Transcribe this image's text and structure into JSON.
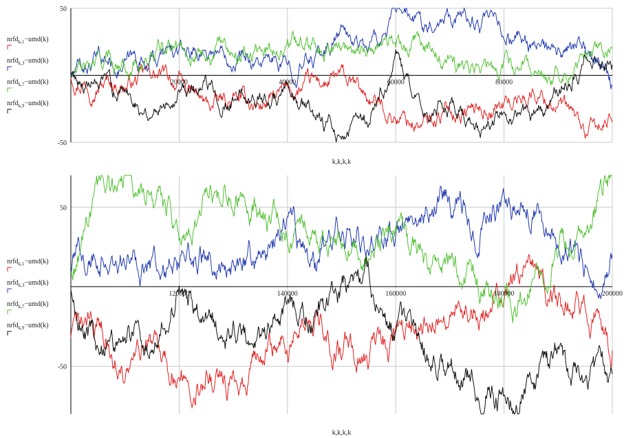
{
  "chart_data": [
    {
      "type": "line",
      "xlabel": "k,k,k,k",
      "xlim": [
        0,
        100000
      ],
      "ylim": [
        -50,
        50
      ],
      "x_ticks": [
        20000,
        40000,
        60000,
        80000
      ],
      "x_tick_labels": [
        "20000",
        "40000",
        "60000",
        "80000"
      ],
      "y_ticks": [
        50,
        -50
      ],
      "y_tick_labels": [
        "50",
        "-50"
      ],
      "legend_placement": "left",
      "series": [
        {
          "legend_main": "nrfd",
          "legend_sub": "k,1",
          "legend_tail": "−umd(k)",
          "color": "#e02020",
          "x": [
            0,
            5000,
            10000,
            15000,
            20000,
            25000,
            30000,
            35000,
            40000,
            45000,
            50000,
            55000,
            60000,
            65000,
            70000,
            75000,
            80000,
            85000,
            90000,
            95000,
            100000
          ],
          "y": [
            0,
            -4,
            -6,
            0,
            -6,
            -24,
            -20,
            -22,
            -14,
            -8,
            -4,
            -18,
            -30,
            -38,
            -26,
            -25,
            -22,
            -12,
            -20,
            -45,
            -35
          ]
        },
        {
          "legend_main": "nrfd",
          "legend_sub": "k,3",
          "legend_tail": "−umd(k)",
          "color": "#2038b0",
          "x": [
            0,
            5000,
            10000,
            15000,
            20000,
            25000,
            30000,
            35000,
            40000,
            45000,
            50000,
            55000,
            60000,
            65000,
            70000,
            75000,
            80000,
            85000,
            90000,
            95000,
            100000
          ],
          "y": [
            0,
            10,
            8,
            14,
            16,
            20,
            18,
            10,
            4,
            14,
            32,
            20,
            42,
            38,
            50,
            40,
            30,
            24,
            10,
            20,
            -8
          ]
        },
        {
          "legend_main": "nrfd",
          "legend_sub": "k,7",
          "legend_tail": "−umd(k)",
          "color": "#50c030",
          "x": [
            0,
            5000,
            10000,
            15000,
            20000,
            25000,
            30000,
            35000,
            40000,
            45000,
            50000,
            55000,
            60000,
            65000,
            70000,
            75000,
            80000,
            85000,
            90000,
            95000,
            100000
          ],
          "y": [
            0,
            8,
            10,
            14,
            22,
            18,
            20,
            18,
            24,
            30,
            20,
            24,
            20,
            22,
            8,
            2,
            6,
            8,
            2,
            14,
            20
          ]
        },
        {
          "legend_main": "nrfd",
          "legend_sub": "k,9",
          "legend_tail": "−umd(k)",
          "color": "#111111",
          "x": [
            0,
            5000,
            10000,
            15000,
            20000,
            25000,
            30000,
            35000,
            40000,
            45000,
            50000,
            55000,
            60000,
            65000,
            70000,
            75000,
            80000,
            85000,
            90000,
            95000,
            100000
          ],
          "y": [
            0,
            -8,
            -12,
            -26,
            -4,
            -10,
            -16,
            -16,
            -20,
            -30,
            -42,
            -32,
            10,
            -34,
            -22,
            -38,
            -30,
            -30,
            -14,
            12,
            8
          ]
        }
      ]
    },
    {
      "type": "line",
      "xlabel": "k,k,k,k",
      "xlim": [
        100000,
        200000
      ],
      "ylim": [
        -80,
        70
      ],
      "x_ticks": [
        120000,
        140000,
        160000,
        180000,
        200000
      ],
      "x_tick_labels": [
        "120000",
        "140000",
        "160000",
        "180000",
        "200000"
      ],
      "y_ticks": [
        50,
        -50
      ],
      "y_tick_labels": [
        "50",
        "-50"
      ],
      "legend_placement": "left",
      "series": [
        {
          "legend_main": "nrfd",
          "legend_sub": "k,1",
          "legend_tail": "−umd(k)",
          "color": "#e02020",
          "x": [
            100000,
            105000,
            110000,
            115000,
            120000,
            125000,
            130000,
            135000,
            140000,
            145000,
            150000,
            155000,
            160000,
            165000,
            170000,
            175000,
            180000,
            185000,
            190000,
            195000,
            200000
          ],
          "y": [
            -30,
            -20,
            -60,
            -40,
            -55,
            -50,
            -62,
            -40,
            -35,
            -25,
            -40,
            -45,
            -35,
            -20,
            -8,
            -8,
            0,
            4,
            -8,
            -12,
            -40
          ]
        },
        {
          "legend_main": "nrfd",
          "legend_sub": "k,3",
          "legend_tail": "−umd(k)",
          "color": "#2038b0",
          "x": [
            100000,
            105000,
            110000,
            115000,
            120000,
            125000,
            130000,
            135000,
            140000,
            145000,
            150000,
            155000,
            160000,
            165000,
            170000,
            175000,
            180000,
            185000,
            190000,
            195000,
            200000
          ],
          "y": [
            10,
            25,
            15,
            15,
            10,
            20,
            15,
            20,
            40,
            10,
            30,
            30,
            30,
            50,
            55,
            40,
            45,
            50,
            35,
            15,
            20
          ]
        },
        {
          "legend_main": "nrfd",
          "legend_sub": "k,7",
          "legend_tail": "−umd(k)",
          "color": "#50c030",
          "x": [
            100000,
            105000,
            110000,
            115000,
            120000,
            125000,
            130000,
            135000,
            140000,
            145000,
            150000,
            155000,
            160000,
            165000,
            170000,
            175000,
            180000,
            185000,
            190000,
            195000,
            200000
          ],
          "y": [
            10,
            50,
            65,
            55,
            35,
            55,
            60,
            50,
            40,
            35,
            25,
            20,
            30,
            15,
            10,
            5,
            -10,
            5,
            25,
            40,
            70
          ]
        },
        {
          "legend_main": "nrfd",
          "legend_sub": "k,9",
          "legend_tail": "−umd(k)",
          "color": "#111111",
          "x": [
            100000,
            105000,
            110000,
            115000,
            120000,
            125000,
            130000,
            135000,
            140000,
            145000,
            150000,
            155000,
            160000,
            165000,
            170000,
            175000,
            180000,
            185000,
            190000,
            195000,
            200000
          ],
          "y": [
            0,
            -40,
            -30,
            -40,
            -5,
            -20,
            -30,
            -40,
            -15,
            -20,
            -5,
            5,
            -30,
            -40,
            -55,
            -60,
            -70,
            -55,
            -45,
            -60,
            -55
          ]
        }
      ]
    }
  ]
}
